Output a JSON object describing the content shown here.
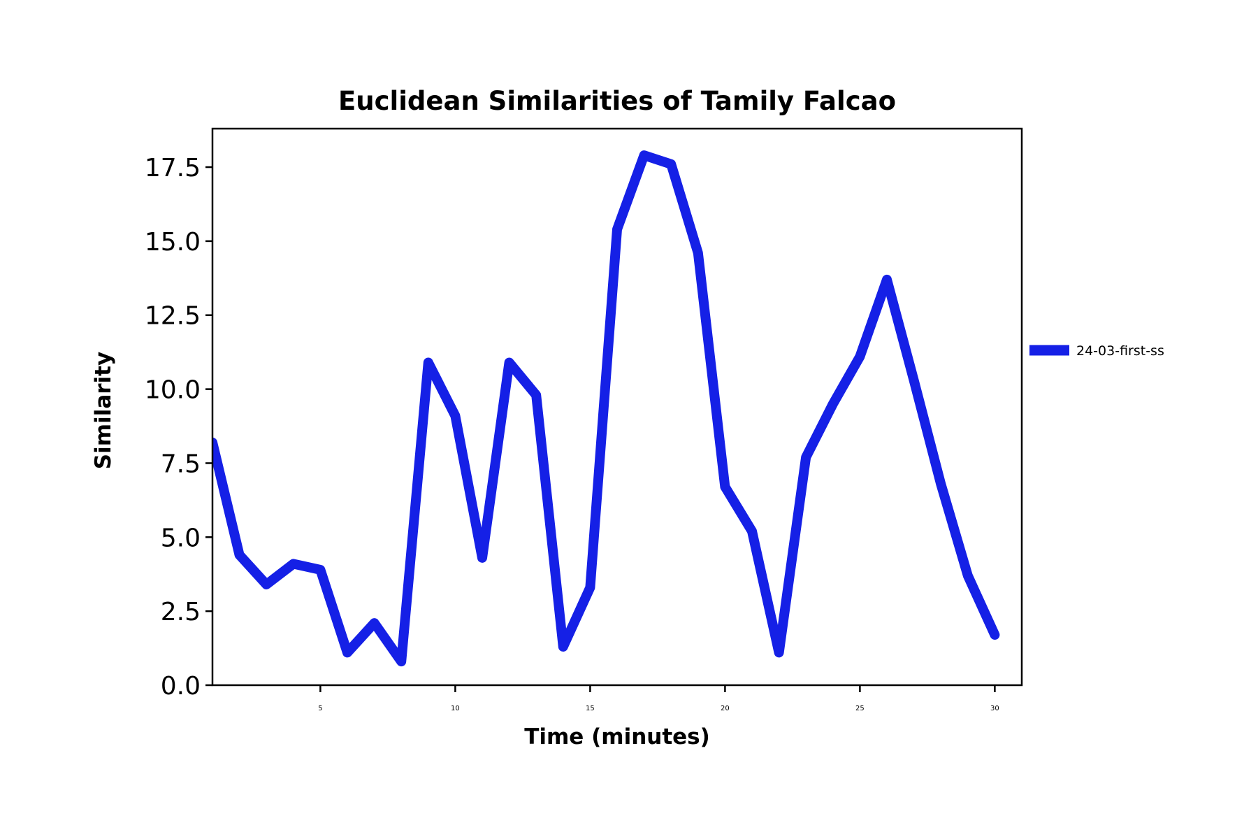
{
  "chart_data": {
    "type": "line",
    "title": "Euclidean Similarities of Tamily Falcao",
    "xlabel": "Time (minutes)",
    "ylabel": "Similarity",
    "xlim": [
      1,
      31
    ],
    "ylim": [
      0,
      18.8
    ],
    "xticks": [
      5,
      10,
      15,
      20,
      25,
      30
    ],
    "yticks": [
      0.0,
      2.5,
      5.0,
      7.5,
      10.0,
      12.5,
      15.0,
      17.5
    ],
    "ytick_labels": [
      "0.0",
      "2.5",
      "5.0",
      "7.5",
      "10.0",
      "12.5",
      "15.0",
      "17.5"
    ],
    "grid": false,
    "legend_position": "right",
    "x": [
      1,
      2,
      3,
      4,
      5,
      6,
      7,
      8,
      9,
      10,
      11,
      12,
      13,
      14,
      15,
      16,
      17,
      18,
      19,
      20,
      21,
      22,
      23,
      24,
      25,
      26,
      27,
      28,
      29,
      30
    ],
    "series": [
      {
        "name": "24-03-first-ss",
        "color": "#1520e6",
        "values": [
          8.2,
          4.4,
          3.4,
          4.1,
          3.9,
          1.1,
          2.1,
          0.8,
          10.9,
          9.1,
          4.3,
          10.9,
          9.8,
          1.3,
          3.3,
          15.4,
          17.9,
          17.6,
          14.6,
          6.7,
          5.2,
          1.1,
          7.7,
          9.5,
          11.1,
          13.7,
          10.3,
          6.8,
          3.7,
          1.7
        ]
      }
    ]
  }
}
